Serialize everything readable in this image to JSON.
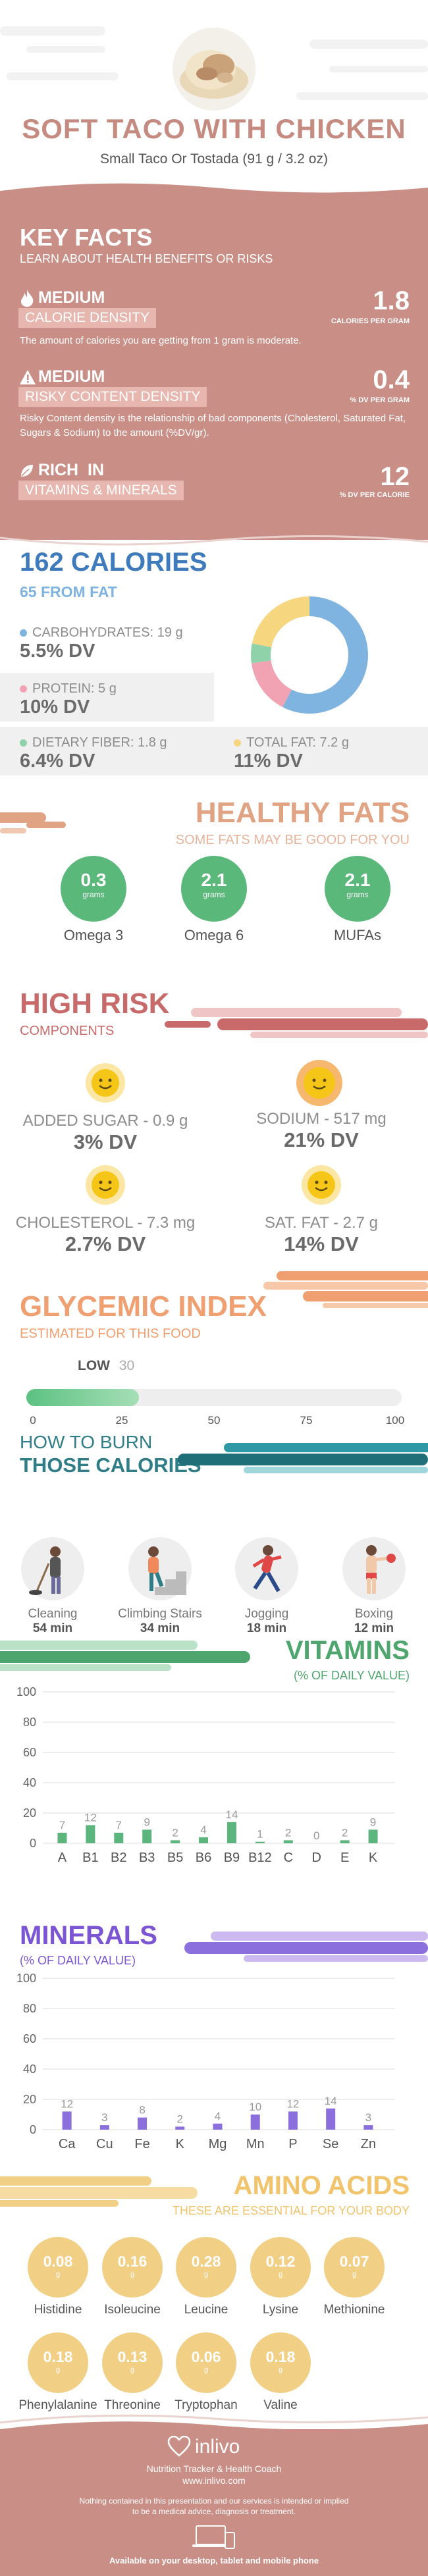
{
  "header": {
    "title": "SOFT TACO WITH CHICKEN",
    "subtitle": "Small Taco Or Tostada (91 g / 3.2 oz)"
  },
  "key_facts": {
    "title": "KEY FACTS",
    "subtitle": "LEARN ABOUT HEALTH BENEFITS OR RISKS",
    "calorie_density": {
      "level": "MEDIUM",
      "label": "CALORIE DENSITY",
      "value": "1.8",
      "unit": "CALORIES PER GRAM",
      "desc": "The amount of calories you are getting from 1 gram is moderate."
    },
    "risky_content": {
      "level": "MEDIUM",
      "label": "RISKY CONTENT DENSITY",
      "value": "0.4",
      "unit": "% DV PER GRAM",
      "desc": "Risky Content density is the relationship of bad components (Cholesterol, Saturated Fat, Sugars & Sodium) to the amount (%DV/gr)."
    },
    "rich_in": {
      "level": "RICH  IN",
      "label": "VITAMINS & MINERALS",
      "value": "12",
      "unit": "% DV PER CALORIE"
    }
  },
  "calories": {
    "title": "162 CALORIES",
    "from_fat": "65 FROM FAT",
    "macros": [
      {
        "label": "CARBOHYDRATES: 19 g",
        "dv": "5.5% DV",
        "color": "#7fb3e0"
      },
      {
        "label": "PROTEIN: 5 g",
        "dv": "10% DV",
        "color": "#f2a3b3"
      },
      {
        "label": "DIETARY FIBER: 1.8 g",
        "dv": "6.4% DV",
        "color": "#8fd1a8"
      },
      {
        "label": "TOTAL FAT: 7.2 g",
        "dv": "11% DV",
        "color": "#f6d67e"
      }
    ],
    "donut": [
      {
        "value": 19,
        "color": "#7fb3e0"
      },
      {
        "value": 5,
        "color": "#f2a3b3"
      },
      {
        "value": 1.8,
        "color": "#8fd1a8"
      },
      {
        "value": 7.2,
        "color": "#f6d67e"
      }
    ]
  },
  "healthy_fats": {
    "title": "HEALTHY FATS",
    "subtitle": "SOME FATS MAY BE GOOD FOR YOU",
    "unit": "grams",
    "items": [
      {
        "value": "0.3",
        "name": "Omega 3"
      },
      {
        "value": "2.1",
        "name": "Omega 6"
      },
      {
        "value": "2.1",
        "name": "MUFAs"
      }
    ]
  },
  "high_risk": {
    "title": "HIGH RISK",
    "subtitle": "COMPONENTS",
    "items": [
      {
        "label": "ADDED SUGAR - 0.9 g",
        "dv": "3% DV",
        "level": "low"
      },
      {
        "label": "SODIUM - 517 mg",
        "dv": "21% DV",
        "level": "medium"
      },
      {
        "label": "CHOLESTEROL - 7.3 mg",
        "dv": "2.7% DV",
        "level": "low"
      },
      {
        "label": "SAT. FAT - 2.7 g",
        "dv": "14% DV",
        "level": "low"
      }
    ]
  },
  "glycemic": {
    "title": "GLYCEMIC INDEX",
    "subtitle": "ESTIMATED FOR THIS FOOD",
    "level": "LOW",
    "value": "30",
    "fill_value": 30,
    "max": 100,
    "ticks": [
      "0",
      "25",
      "50",
      "75",
      "100"
    ]
  },
  "burn": {
    "title1": "HOW TO BURN",
    "title2": "THOSE CALORIES",
    "items": [
      {
        "name": "Cleaning",
        "min": "54 min",
        "icon": "cleaning-icon"
      },
      {
        "name": "Climbing Stairs",
        "min": "34 min",
        "icon": "stairs-icon"
      },
      {
        "name": "Jogging",
        "min": "18 min",
        "icon": "jogging-icon"
      },
      {
        "name": "Boxing",
        "min": "12 min",
        "icon": "boxing-icon"
      }
    ]
  },
  "vitamins": {
    "title": "VITAMINS",
    "subtitle": "(% OF DAILY VALUE)"
  },
  "minerals": {
    "title": "MINERALS",
    "subtitle": "(% OF DAILY VALUE)"
  },
  "chart_data": [
    {
      "type": "bar",
      "title": "VITAMINS",
      "subtitle": "(% OF DAILY VALUE)",
      "categories": [
        "A",
        "B1",
        "B2",
        "B3",
        "B5",
        "B6",
        "B9",
        "B12",
        "C",
        "D",
        "E",
        "K"
      ],
      "values": [
        7,
        12,
        7,
        9,
        2,
        4,
        14,
        1,
        2,
        0,
        2,
        9
      ],
      "yticks": [
        "0",
        "20",
        "40",
        "60",
        "80",
        "100"
      ],
      "ylim": [
        0,
        100
      ],
      "color": "#5bb57c",
      "grid": true
    },
    {
      "type": "bar",
      "title": "MINERALS",
      "subtitle": "(% OF DAILY VALUE)",
      "categories": [
        "Ca",
        "Cu",
        "Fe",
        "K",
        "Mg",
        "Mn",
        "P",
        "Se",
        "Zn"
      ],
      "values": [
        12,
        3,
        8,
        2,
        4,
        10,
        12,
        14,
        3
      ],
      "yticks": [
        "0",
        "20",
        "40",
        "60",
        "80",
        "100"
      ],
      "ylim": [
        0,
        100
      ],
      "color": "#8b6fdc",
      "grid": true
    }
  ],
  "amino": {
    "title": "AMINO ACIDS",
    "subtitle": "THESE ARE ESSENTIAL FOR YOUR BODY",
    "unit": "g",
    "items": [
      {
        "value": "0.08",
        "name": "Histidine"
      },
      {
        "value": "0.16",
        "name": "Isoleucine"
      },
      {
        "value": "0.28",
        "name": "Leucine"
      },
      {
        "value": "0.12",
        "name": "Lysine"
      },
      {
        "value": "0.07",
        "name": "Methionine"
      },
      {
        "value": "0.18",
        "name": "Phenylalanine"
      },
      {
        "value": "0.13",
        "name": "Threonine"
      },
      {
        "value": "0.06",
        "name": "Tryptophan"
      },
      {
        "value": "0.18",
        "name": "Valine"
      }
    ]
  },
  "footer": {
    "brand": "inlivo",
    "tagline": "Nutrition Tracker & Health Coach",
    "site": "www.inlivo.com",
    "disclaimer1": "Nothing contained in this presentation and our services is intended or implied",
    "disclaimer2": "to be a medical advice, diagnosis or treatment.",
    "available": "Available on your desktop, tablet and mobile phone"
  }
}
